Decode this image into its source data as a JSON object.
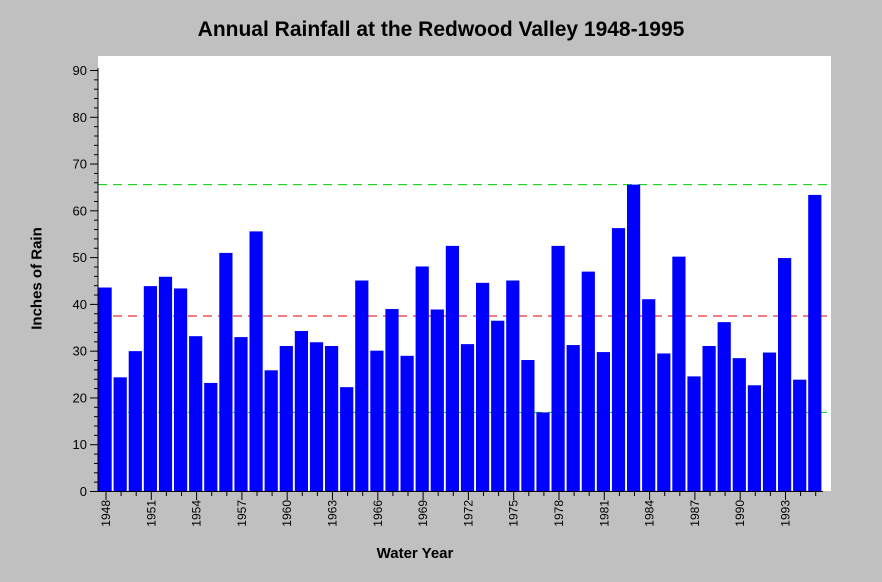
{
  "chart_data": {
    "type": "bar",
    "title": "Annual Rainfall at the Redwood Valley 1948-1995",
    "xlabel": "Water Year",
    "ylabel": "Inches of Rain",
    "ylim": [
      0,
      90
    ],
    "yticks": [
      0,
      10,
      20,
      30,
      40,
      50,
      60,
      70,
      80,
      90
    ],
    "xtick_labels": [
      "1948",
      "1951",
      "1954",
      "1957",
      "1960",
      "1963",
      "1966",
      "1969",
      "1972",
      "1975",
      "1978",
      "1981",
      "1984",
      "1987",
      "1990",
      "1993"
    ],
    "categories": [
      "1948",
      "1949",
      "1950",
      "1951",
      "1952",
      "1953",
      "1954",
      "1955",
      "1956",
      "1957",
      "1958",
      "1959",
      "1960",
      "1961",
      "1962",
      "1963",
      "1964",
      "1965",
      "1966",
      "1967",
      "1968",
      "1969",
      "1970",
      "1971",
      "1972",
      "1973",
      "1974",
      "1975",
      "1976",
      "1977",
      "1978",
      "1979",
      "1980",
      "1981",
      "1982",
      "1983",
      "1984",
      "1985",
      "1986",
      "1987",
      "1988",
      "1989",
      "1990",
      "1991",
      "1992",
      "1993",
      "1994",
      "1995"
    ],
    "values": [
      43.5,
      24.3,
      29.9,
      43.8,
      45.8,
      43.3,
      33.1,
      23.1,
      50.9,
      32.9,
      55.5,
      25.8,
      31.0,
      34.2,
      31.8,
      31.0,
      22.2,
      45.0,
      30.0,
      38.9,
      28.9,
      48.0,
      38.8,
      52.4,
      31.4,
      44.5,
      36.4,
      45.0,
      28.0,
      16.8,
      52.4,
      31.2,
      46.9,
      29.7,
      56.2,
      65.5,
      41.0,
      29.4,
      50.1,
      24.5,
      31.0,
      36.1,
      28.4,
      22.6,
      29.6,
      49.8,
      23.8,
      63.3
    ],
    "reference_lines": [
      {
        "value": 65.5,
        "color": "#00cc00"
      },
      {
        "value": 37.4,
        "color": "#e00000"
      },
      {
        "value": 16.8,
        "color": "#00cc00"
      }
    ],
    "bar_color": "#0000ff",
    "grid": false
  }
}
